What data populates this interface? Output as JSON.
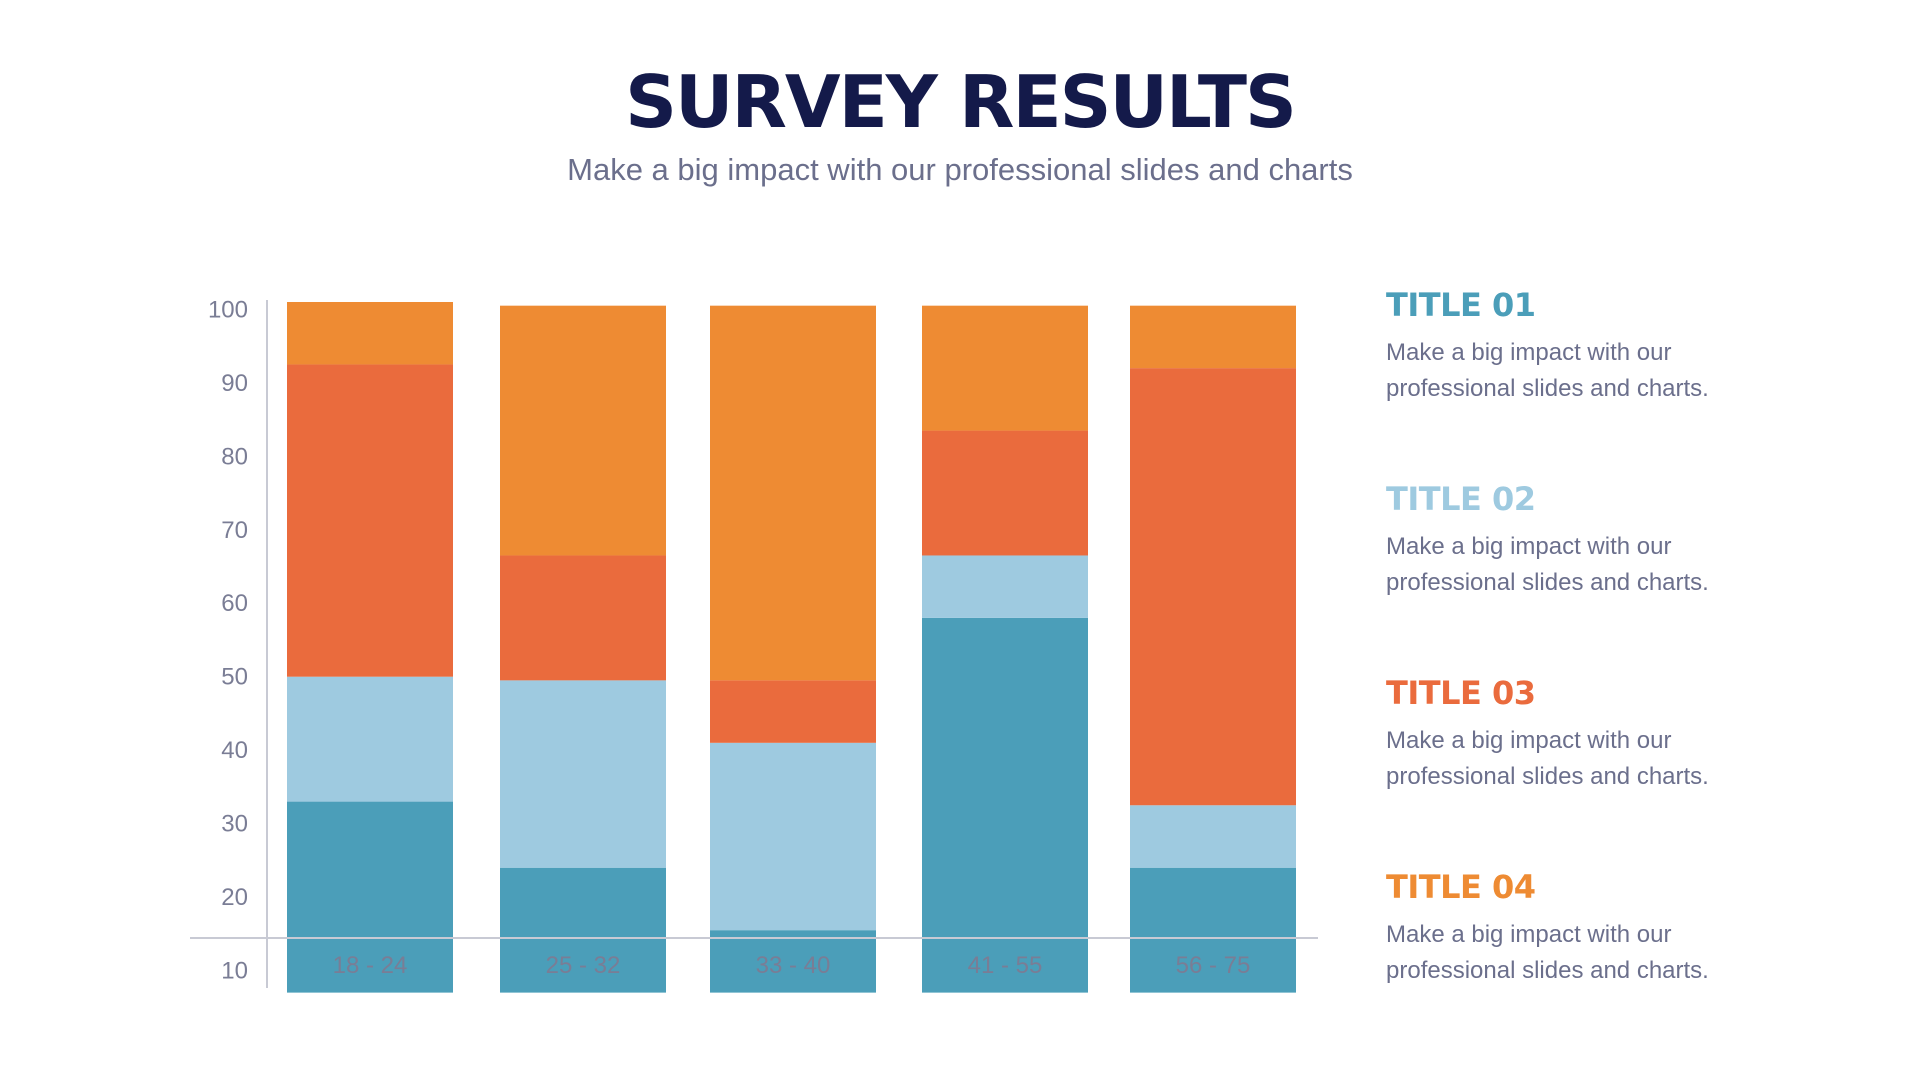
{
  "header": {
    "title": "SURVEY RESULTS",
    "subtitle": "Make a big impact with our professional slides and charts"
  },
  "colors": {
    "title": "#141a4a",
    "teal": "#4b9eb9",
    "light_blue": "#9ecae0",
    "red_orange": "#ea6b3d",
    "orange": "#ee8b33",
    "axis": "#c8cad4"
  },
  "legend": [
    {
      "title": "TITLE 01",
      "desc": "Make a big impact with our professional slides and charts.",
      "color": "#4b9eb9"
    },
    {
      "title": "TITLE 02",
      "desc": "Make a big impact with our professional slides and charts.",
      "color": "#9ecae0"
    },
    {
      "title": "TITLE 03",
      "desc": "Make a big impact with our professional slides and charts.",
      "color": "#ea6b3d"
    },
    {
      "title": "TITLE 04",
      "desc": "Make a big impact with our professional slides and charts.",
      "color": "#ee8b33"
    }
  ],
  "chart_data": {
    "type": "bar",
    "stacked": true,
    "title": "SURVEY RESULTS",
    "xlabel": "",
    "ylabel": "",
    "categories": [
      "18 - 24",
      "25 - 32",
      "33 - 40",
      "41 - 55",
      "56 - 75"
    ],
    "y_ticks": [
      10,
      20,
      30,
      40,
      50,
      60,
      70,
      80,
      90,
      100
    ],
    "ylim": [
      3,
      101
    ],
    "baseline": 7,
    "series": [
      {
        "name": "TITLE 01",
        "color": "#4b9eb9",
        "values": [
          26,
          17,
          8.5,
          51,
          17
        ]
      },
      {
        "name": "TITLE 02",
        "color": "#9ecae0",
        "values": [
          17,
          25.5,
          25.5,
          8.5,
          8.5
        ]
      },
      {
        "name": "TITLE 03",
        "color": "#ea6b3d",
        "values": [
          42.5,
          17,
          8.5,
          17,
          59.5
        ]
      },
      {
        "name": "TITLE 04",
        "color": "#ee8b33",
        "values": [
          8.5,
          34,
          51,
          17,
          8.5
        ]
      }
    ],
    "grid": false,
    "legend": "right"
  }
}
